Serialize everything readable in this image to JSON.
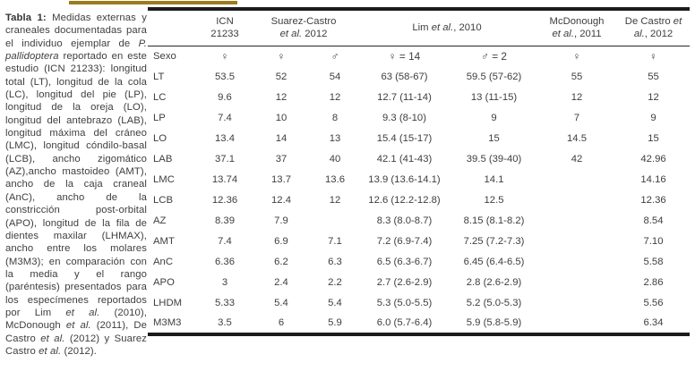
{
  "decor": {
    "gold_rule_color": "#9c7a1e",
    "border_color": "#1b1b1b"
  },
  "caption": {
    "segments": [
      {
        "text": "Tabla 1: ",
        "bold": true
      },
      {
        "text": "Medidas externas y craneales documentadas para el individuo ejemplar de "
      },
      {
        "text": "P. pallidoptera",
        "italic": true
      },
      {
        "text": " reportado en este estudio (ICN 21233): longitud total (LT), longitud de la cola (LC), longitud del pie (LP), longitud de la oreja (LO), longitud del antebrazo (LAB), longitud máxima del cráneo (LMC), longitud cóndilo-basal (LCB), ancho zigomático (AZ),ancho mastoideo (AMT), ancho de la caja craneal (AnC), ancho de la constricción post-orbital (APO), longitud de la fila de dientes maxilar (LHMAX), ancho entre los molares (M3M3); en comparación con la media y el rango (paréntesis) presentados para los especímenes reportados por Lim "
      },
      {
        "text": "et al.",
        "italic": true
      },
      {
        "text": " (2010), McDonough "
      },
      {
        "text": "et al.",
        "italic": true
      },
      {
        "text": " (2011), De Castro "
      },
      {
        "text": "et al.",
        "italic": true
      },
      {
        "text": " (2012) y Suarez Castro "
      },
      {
        "text": "et al.",
        "italic": true
      },
      {
        "text": " (2012)."
      }
    ]
  },
  "table": {
    "header_groups": [
      {
        "name": "icn-21233",
        "span": 1,
        "lines": [
          [
            {
              "t": "ICN"
            }
          ],
          [
            {
              "t": "21233"
            }
          ]
        ]
      },
      {
        "name": "suarez-castro-2012",
        "span": 2,
        "lines": [
          [
            {
              "t": "Suarez-Castro"
            }
          ],
          [
            {
              "t": "et al.",
              "i": true
            },
            {
              "t": " 2012"
            }
          ]
        ]
      },
      {
        "name": "lim-2010",
        "span": 2,
        "lines": [
          [
            {
              "t": "Lim "
            },
            {
              "t": "et al.",
              "i": true
            },
            {
              "t": ", 2010"
            }
          ]
        ]
      },
      {
        "name": "mcdonough-2011",
        "span": 1,
        "lines": [
          [
            {
              "t": "McDonough"
            }
          ],
          [
            {
              "t": "et al.",
              "i": true
            },
            {
              "t": ", 2011"
            }
          ]
        ]
      },
      {
        "name": "de-castro-2012",
        "span": 1,
        "lines": [
          [
            {
              "t": "De Castro "
            },
            {
              "t": "et",
              "i": true
            }
          ],
          [
            {
              "t": "al.",
              "i": true
            },
            {
              "t": ", 2012"
            }
          ]
        ]
      }
    ],
    "sex_row": {
      "label": "Sexo",
      "values": [
        "♀",
        "♀",
        "♂",
        "♀ = 14",
        "♂ = 2",
        "♀",
        "♀"
      ]
    },
    "rows": [
      {
        "label": "LT",
        "values": [
          "53.5",
          "52",
          "54",
          "63 (58-67)",
          "59.5 (57-62)",
          "55",
          "55"
        ]
      },
      {
        "label": "LC",
        "values": [
          "9.6",
          "12",
          "12",
          "12.7 (11-14)",
          "13 (11-15)",
          "12",
          "12"
        ]
      },
      {
        "label": "LP",
        "values": [
          "7.4",
          "10",
          "8",
          "9.3 (8-10)",
          "9",
          "7",
          "9"
        ]
      },
      {
        "label": "LO",
        "values": [
          "13.4",
          "14",
          "13",
          "15.4 (15-17)",
          "15",
          "14.5",
          "15"
        ]
      },
      {
        "label": "LAB",
        "values": [
          "37.1",
          "37",
          "40",
          "42.1 (41-43)",
          "39.5 (39-40)",
          "42",
          "42.96"
        ]
      },
      {
        "label": "LMC",
        "values": [
          "13.74",
          "13.7",
          "13.6",
          "13.9 (13.6-14.1)",
          "14.1",
          "",
          "14.16"
        ]
      },
      {
        "label": "LCB",
        "values": [
          "12.36",
          "12.4",
          "12",
          "12.6 (12.2-12.8)",
          "12.5",
          "",
          "12.36"
        ]
      },
      {
        "label": "AZ",
        "values": [
          "8.39",
          "7.9",
          "",
          "8.3 (8.0-8.7)",
          "8.15 (8.1-8.2)",
          "",
          "8.54"
        ]
      },
      {
        "label": "AMT",
        "values": [
          "7.4",
          "6.9",
          "7.1",
          "7.2 (6.9-7.4)",
          "7.25 (7.2-7.3)",
          "",
          "7.10"
        ]
      },
      {
        "label": "AnC",
        "values": [
          "6.36",
          "6.2",
          "6.3",
          "6.5 (6.3-6.7)",
          "6.45 (6.4-6.5)",
          "",
          "5.58"
        ]
      },
      {
        "label": "APO",
        "values": [
          "3",
          "2.4",
          "2.2",
          "2.7 (2.6-2.9)",
          "2.8 (2.6-2.9)",
          "",
          "2.86"
        ]
      },
      {
        "label": "LHDM",
        "values": [
          "5.33",
          "5.4",
          "5.4",
          "5.3 (5.0-5.5)",
          "5.2 (5.0-5.3)",
          "",
          "5.56"
        ]
      },
      {
        "label": "M3M3",
        "values": [
          "3.5",
          "6",
          "5.9",
          "6.0 (5.7-6.4)",
          "5.9 (5.8-5.9)",
          "",
          "6.34"
        ]
      }
    ]
  }
}
